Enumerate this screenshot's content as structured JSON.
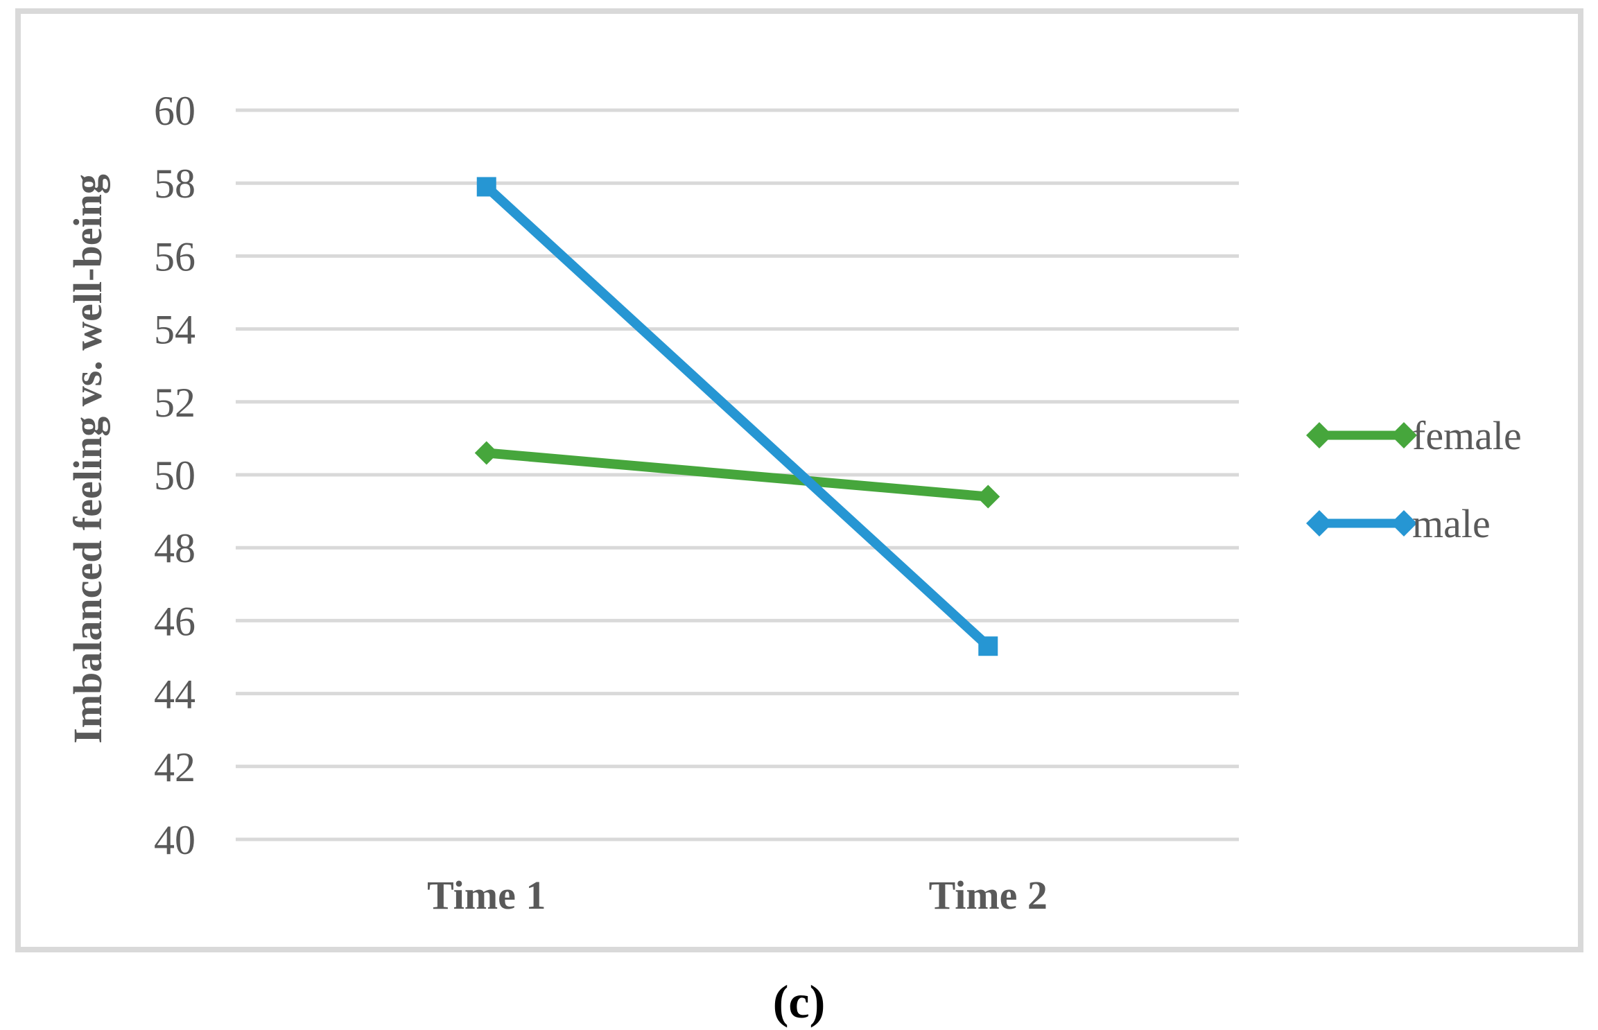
{
  "figure": {
    "caption": "(c)"
  },
  "chart_data": {
    "type": "line",
    "title": "",
    "ylabel": "Imbalanced feeling vs. well-being",
    "xlabel": "",
    "categories": [
      "Time 1",
      "Time 2"
    ],
    "series": [
      {
        "name": "female",
        "values": [
          50.6,
          49.4
        ],
        "color": "#46A63C",
        "marker": "diamond"
      },
      {
        "name": "male",
        "values": [
          57.9,
          45.3
        ],
        "color": "#2696D3",
        "marker": "square"
      }
    ],
    "ylim": [
      40,
      60
    ],
    "ytick_step": 2,
    "yticks": [
      40,
      42,
      44,
      46,
      48,
      50,
      52,
      54,
      56,
      58,
      60
    ],
    "grid": true,
    "legend_position": "right",
    "legend": [
      "female",
      "male"
    ],
    "colors": {
      "gridline": "#D9D9D9",
      "border": "#D9D9D9",
      "axis_text": "#595959",
      "caption_text": "#000000"
    }
  }
}
